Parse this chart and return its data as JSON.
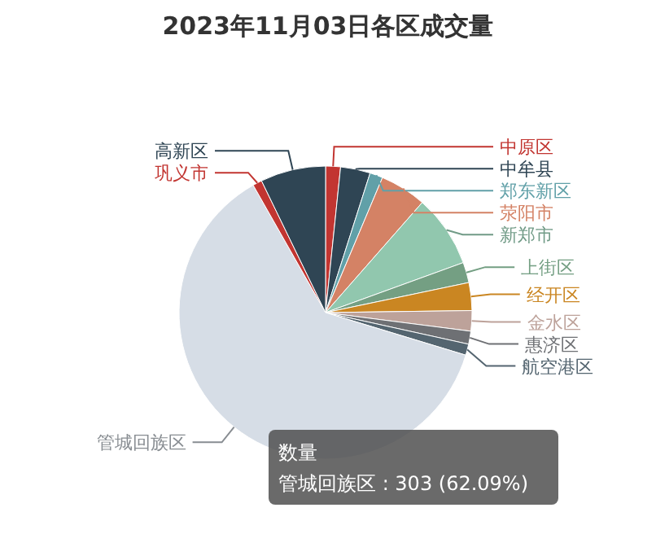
{
  "chart_data": {
    "type": "pie",
    "title": "2023年11月03日各区成交量",
    "categories": [
      "中原区",
      "中牟县",
      "郑东新区",
      "荥阳市",
      "新郑市",
      "上街区",
      "经开区",
      "金水区",
      "惠济区",
      "航空港区",
      "管城回族区",
      "巩义市",
      "高新区"
    ],
    "values": [
      1.64,
      3.28,
      1.43,
      5.12,
      7.99,
      2.25,
      3.07,
      2.25,
      1.43,
      1.23,
      62.09,
      1.02,
      7.2
    ],
    "colors": [
      "#c23531",
      "#2f4554",
      "#61a0a8",
      "#d48265",
      "#91c7ae",
      "#749f83",
      "#ca8622",
      "#bda29a",
      "#6e7074",
      "#546570",
      "#d6dde6",
      "#c23531",
      "#2f4554"
    ],
    "annotations": [
      "数量",
      "管城回族区 : 303 (62.09%)"
    ]
  }
}
